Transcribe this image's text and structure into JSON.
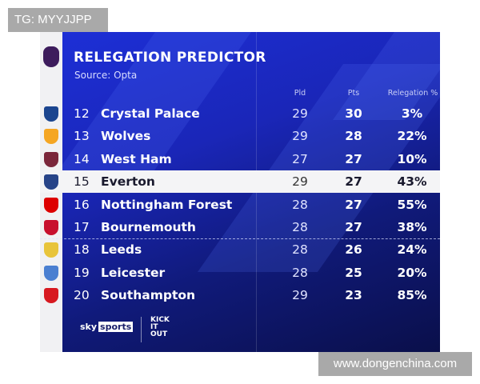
{
  "watermarks": {
    "top_left": "TG: MYYJJPP",
    "bottom_right": "www.dongenchina.com"
  },
  "header": {
    "title": "RELEGATION PREDICTOR",
    "source": "Source: Opta"
  },
  "columns": {
    "played": "Pld",
    "points": "Pts",
    "relegation": "Relegation %"
  },
  "rows": [
    {
      "rank": "12",
      "team": "Crystal Palace",
      "pld": "29",
      "pts": "30",
      "rel": "3%",
      "crest_color": "#1b458f"
    },
    {
      "rank": "13",
      "team": "Wolves",
      "pld": "29",
      "pts": "28",
      "rel": "22%",
      "crest_color": "#f5a623"
    },
    {
      "rank": "14",
      "team": "West Ham",
      "pld": "27",
      "pts": "27",
      "rel": "10%",
      "crest_color": "#7a263a"
    },
    {
      "rank": "15",
      "team": "Everton",
      "pld": "29",
      "pts": "27",
      "rel": "43%",
      "crest_color": "#274488",
      "highlighted": true
    },
    {
      "rank": "16",
      "team": "Nottingham Forest",
      "pld": "28",
      "pts": "27",
      "rel": "55%",
      "crest_color": "#dd0000"
    },
    {
      "rank": "17",
      "team": "Bournemouth",
      "pld": "28",
      "pts": "27",
      "rel": "38%",
      "crest_color": "#c8102e"
    },
    {
      "rank": "18",
      "team": "Leeds",
      "pld": "28",
      "pts": "26",
      "rel": "24%",
      "crest_color": "#e8c43a"
    },
    {
      "rank": "19",
      "team": "Leicester",
      "pld": "28",
      "pts": "25",
      "rel": "20%",
      "crest_color": "#4a7fd1"
    },
    {
      "rank": "20",
      "team": "Southampton",
      "pld": "29",
      "pts": "23",
      "rel": "85%",
      "crest_color": "#d71920"
    }
  ],
  "footer": {
    "sky": "sky",
    "sports": "sports",
    "kick_it_out": "KICK IT OUT"
  }
}
